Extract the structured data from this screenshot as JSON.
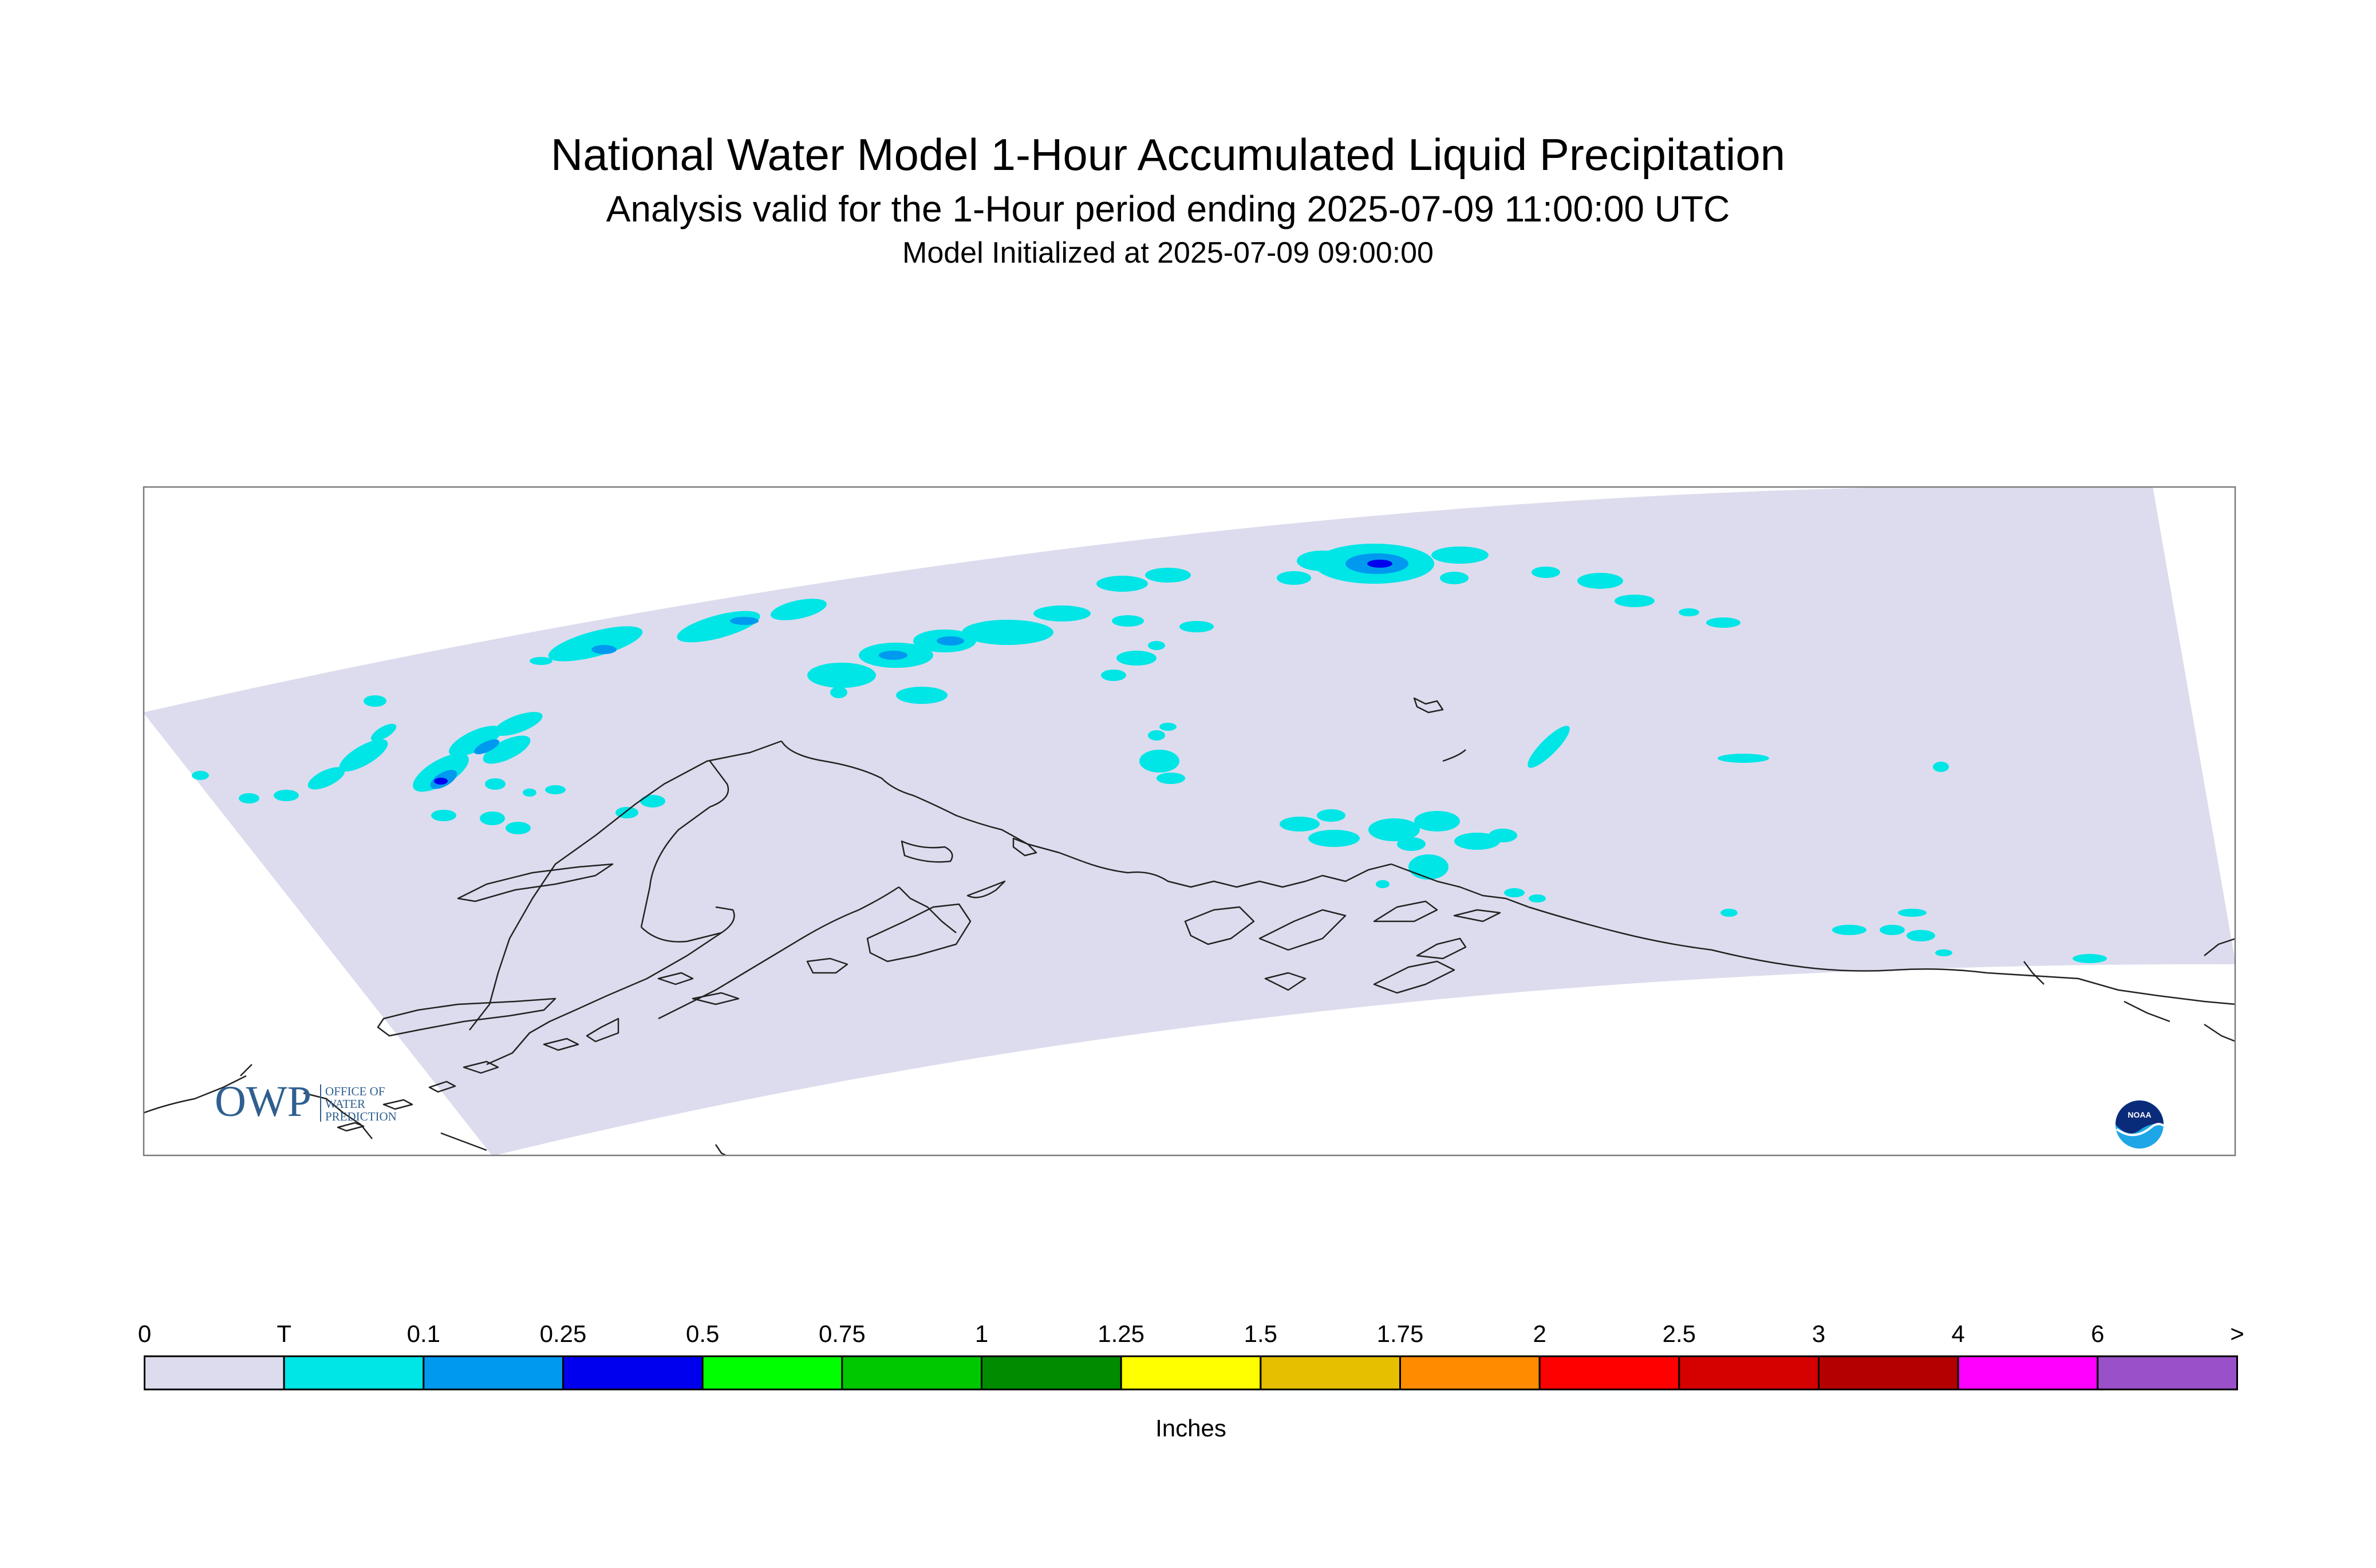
{
  "header": {
    "title": "National Water Model 1-Hour Accumulated Liquid Precipitation",
    "subtitle": "Analysis valid for the 1-Hour period ending 2025-07-09 11:00:00 UTC",
    "init_line": "Model Initialized at 2025-07-09 09:00:00"
  },
  "map": {
    "region": "Alaska",
    "precip_colors": {
      "trace": "#00e5e5",
      "light": "#0099f0",
      "moderate": "#0000ee"
    },
    "domain_fill": "#dcdcee"
  },
  "logos": {
    "owp": {
      "mark": "OWP",
      "lines": [
        "OFFICE OF",
        "WATER",
        "PREDICTION"
      ]
    },
    "noaa": {
      "mark": "NOAA",
      "icon": "noaa-logo-icon"
    }
  },
  "legend": {
    "title": "Inches",
    "labels": [
      "0",
      "T",
      "0.1",
      "0.25",
      "0.5",
      "0.75",
      "1",
      "1.25",
      "1.5",
      "1.75",
      "2",
      "2.5",
      "3",
      "4",
      "6",
      ">"
    ],
    "colors": [
      "#dcdcee",
      "#00e5e5",
      "#0099f0",
      "#0000ee",
      "#00ff00",
      "#00c800",
      "#008c00",
      "#ffff00",
      "#e5bf00",
      "#ff8c00",
      "#ff0000",
      "#d50000",
      "#b40000",
      "#ff00ff",
      "#9a50c8"
    ]
  }
}
